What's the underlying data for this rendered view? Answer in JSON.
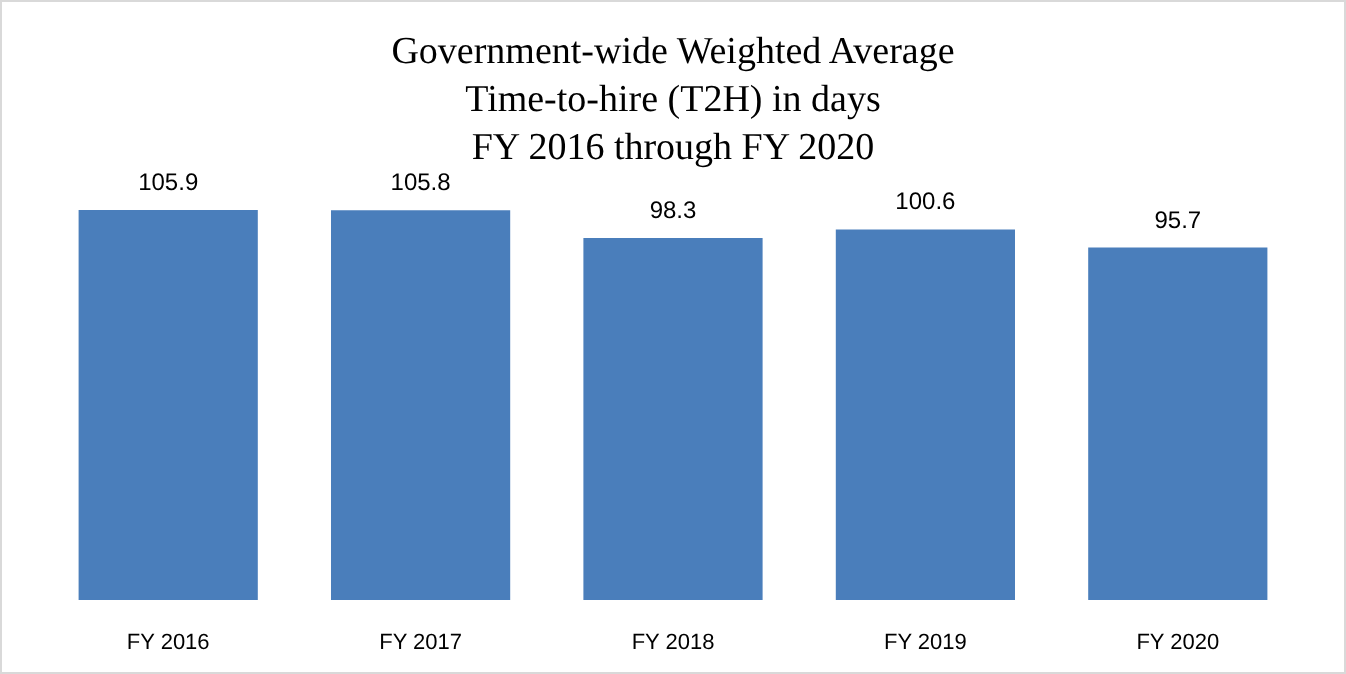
{
  "chart_data": {
    "type": "bar",
    "title": "Government-wide Weighted Average\nTime-to-hire (T2H) in days\nFY 2016 through FY 2020",
    "categories": [
      "FY 2016",
      "FY 2017",
      "FY 2018",
      "FY 2019",
      "FY 2020"
    ],
    "values": [
      105.9,
      105.8,
      98.3,
      100.6,
      95.7
    ],
    "color": "#4a7ebb",
    "tick_labels": "x",
    "data_labels": true
  }
}
